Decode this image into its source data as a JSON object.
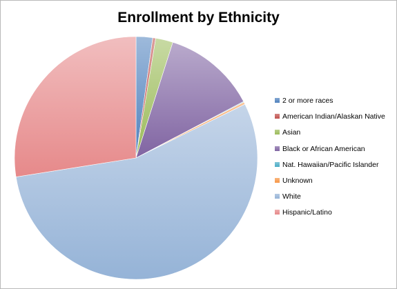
{
  "chart_data": {
    "type": "pie",
    "title": "Enrollment by Ethnicity",
    "legend_position": "right",
    "categories": [
      "2 or more races",
      "American Indian/Alaskan Native",
      "Asian",
      "Black or African American",
      "Nat. Hawaiian/Pacific Islander",
      "Unknown",
      "White",
      "Hispanic/Latino"
    ],
    "values": [
      2.2,
      0.4,
      2.3,
      12.4,
      0.1,
      0.3,
      54.8,
      27.5
    ],
    "colors": [
      "#4f81bd",
      "#c0504d",
      "#9bbb59",
      "#8064a2",
      "#4bacc6",
      "#f79646",
      "#95b3d7",
      "#e6898a"
    ]
  }
}
